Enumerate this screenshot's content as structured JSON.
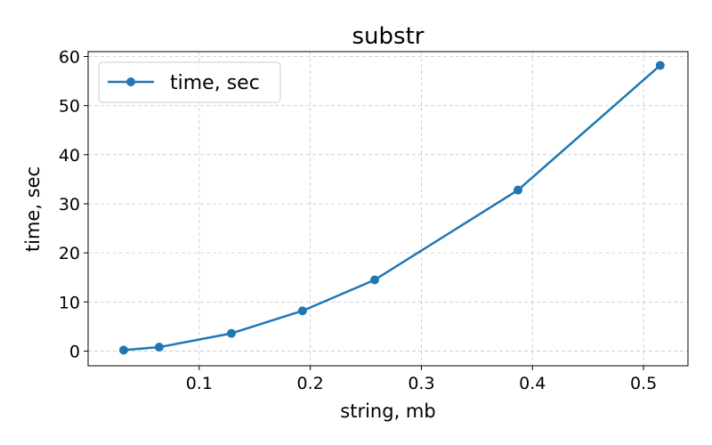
{
  "chart_data": {
    "type": "line",
    "title": "substr",
    "xlabel": "string, mb",
    "ylabel": "time, sec",
    "xlim": [
      0.0,
      0.54
    ],
    "ylim": [
      -3.0,
      61.0
    ],
    "xticks": [
      0.1,
      0.2,
      0.3,
      0.4,
      0.5
    ],
    "xtick_labels": [
      "0.1",
      "0.2",
      "0.3",
      "0.4",
      "0.5"
    ],
    "yticks": [
      0,
      10,
      20,
      30,
      40,
      50,
      60
    ],
    "ytick_labels": [
      "0",
      "10",
      "20",
      "30",
      "40",
      "50",
      "60"
    ],
    "grid": true,
    "legend_position": "top-left",
    "series": [
      {
        "name": "time, sec",
        "color": "#1f77b4",
        "x": [
          0.032,
          0.064,
          0.129,
          0.193,
          0.258,
          0.387,
          0.515
        ],
        "y": [
          0.2,
          0.8,
          3.6,
          8.2,
          14.5,
          32.8,
          58.2
        ]
      }
    ]
  }
}
